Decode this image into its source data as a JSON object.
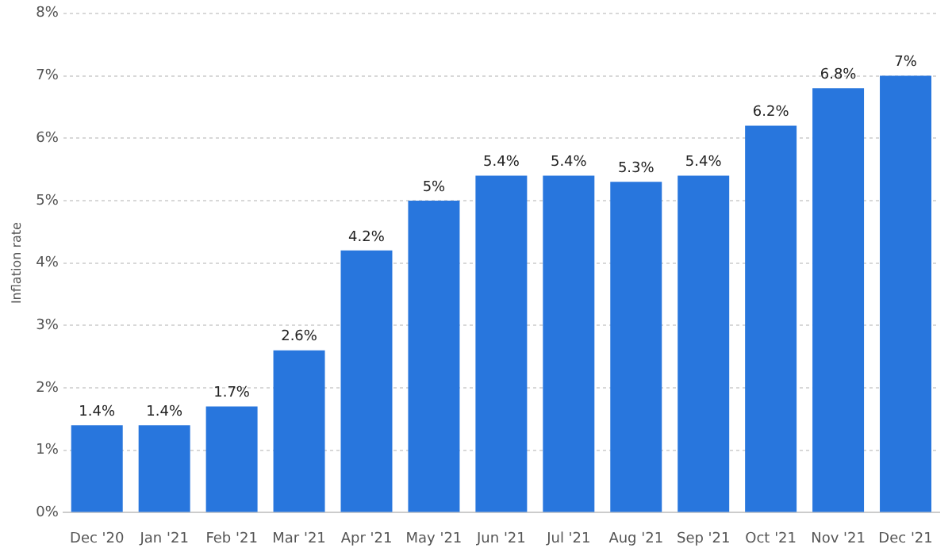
{
  "chart_data": {
    "type": "bar",
    "ylabel": "Inflation rate",
    "categories": [
      "Dec '20",
      "Jan '21",
      "Feb '21",
      "Mar '21",
      "Apr '21",
      "May '21",
      "Jun '21",
      "Jul '21",
      "Aug '21",
      "Sep '21",
      "Oct '21",
      "Nov '21",
      "Dec '21"
    ],
    "values": [
      1.4,
      1.4,
      1.7,
      2.6,
      4.2,
      5,
      5.4,
      5.4,
      5.3,
      5.4,
      6.2,
      6.8,
      7
    ],
    "value_labels": [
      "1.4%",
      "1.4%",
      "1.7%",
      "2.6%",
      "4.2%",
      "5%",
      "5.4%",
      "5.4%",
      "5.3%",
      "5.4%",
      "6.2%",
      "6.8%",
      "7%"
    ],
    "color": "#2876dd",
    "ylim": [
      0,
      8
    ],
    "yticks": [
      {
        "value": 0,
        "label": "0%"
      },
      {
        "value": 1,
        "label": "1%"
      },
      {
        "value": 2,
        "label": "2%"
      },
      {
        "value": 3,
        "label": "3%"
      },
      {
        "value": 4,
        "label": "4%"
      },
      {
        "value": 5,
        "label": "5%"
      },
      {
        "value": 6,
        "label": "6%"
      },
      {
        "value": 7,
        "label": "7%"
      },
      {
        "value": 8,
        "label": "8%"
      }
    ],
    "grid": "y"
  }
}
